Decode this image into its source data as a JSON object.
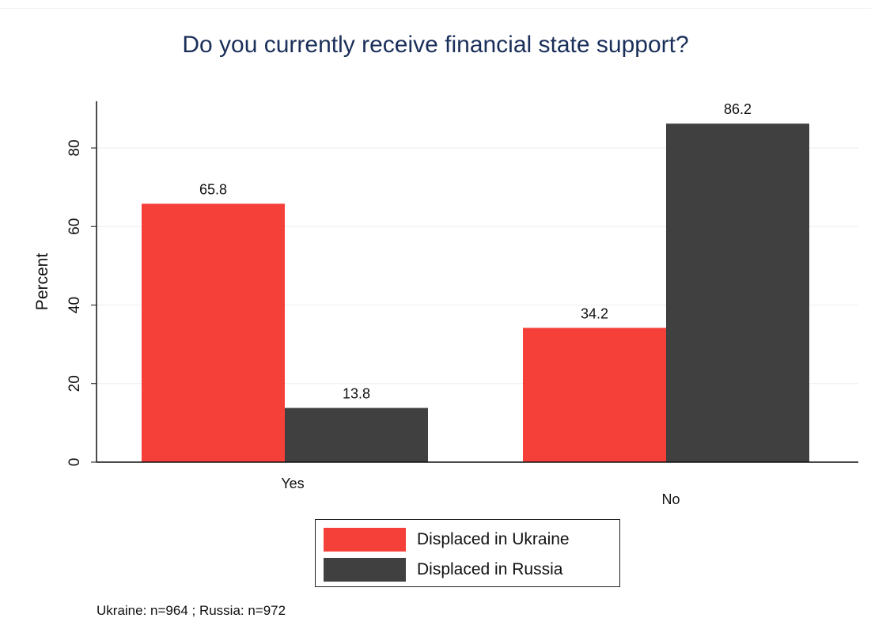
{
  "chart_data": {
    "type": "bar",
    "title": "Do you currently receive financial state support?",
    "xlabel": "",
    "ylabel": "Percent",
    "categories": [
      "Yes",
      "No"
    ],
    "series": [
      {
        "name": "Displaced in Ukraine",
        "values": [
          65.8,
          34.2
        ],
        "color": "#f5403a"
      },
      {
        "name": "Displaced in Russia",
        "values": [
          13.8,
          86.2
        ],
        "color": "#404040"
      }
    ],
    "data_labels": [
      [
        "65.8",
        "34.2"
      ],
      [
        "13.8",
        "86.2"
      ]
    ],
    "yticks": [
      "0",
      "20",
      "40",
      "60",
      "80"
    ],
    "ylim": [
      0,
      92
    ],
    "grid": true,
    "legend": "bottom"
  },
  "footnote": "Ukraine: n=964 ; Russia: n=972"
}
